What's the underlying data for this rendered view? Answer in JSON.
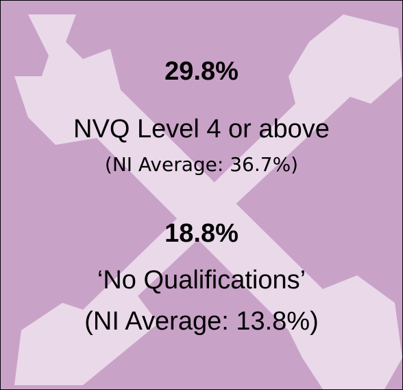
{
  "stats": [
    {
      "value": "29.8%",
      "label": "NVQ Level 4 or above",
      "comparison": "(NI Average: 36.7%)"
    },
    {
      "value": "18.8%",
      "label": "‘No Qualifications’",
      "comparison": "(NI Average: 13.8%)"
    }
  ]
}
